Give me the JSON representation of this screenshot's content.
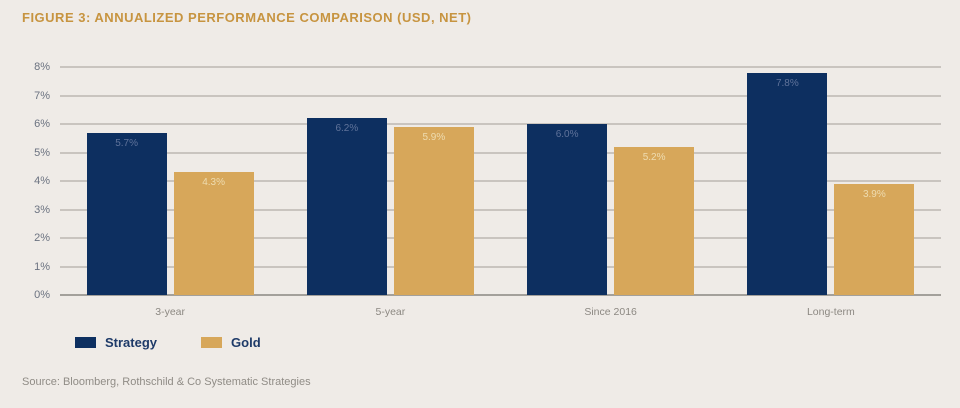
{
  "title": "FIGURE 3: ANNUALIZED PERFORMANCE COMPARISON (USD, NET)",
  "source": "Source: Bloomberg, Rothschild & Co Systematic Strategies",
  "colors": {
    "background": "#efebe7",
    "title": "#c79440",
    "navy": "#0d2f60",
    "gold": "#d7a75a",
    "gridline": "#c9c4bf",
    "baseline": "#a3a09b",
    "tick_label": "#6b7280",
    "category_label": "#8c8882",
    "legend_text": "#1e3a68",
    "value_label_on_navy": "#60739a",
    "value_label_on_gold": "#eedcb0"
  },
  "chart_data": {
    "type": "bar",
    "title": "FIGURE 3: ANNUALIZED PERFORMANCE COMPARISON (USD, NET)",
    "categories": [
      "3-year",
      "5-year",
      "Since 2016",
      "Long-term"
    ],
    "series": [
      {
        "name": "Strategy",
        "color_key": "navy",
        "values": [
          5.7,
          6.2,
          6.0,
          7.8
        ],
        "value_labels": [
          "5.7%",
          "6.2%",
          "6.0%",
          "7.8%"
        ],
        "value_label_color_key": "value_label_on_navy"
      },
      {
        "name": "Gold",
        "color_key": "gold",
        "values": [
          4.3,
          5.9,
          5.2,
          3.9
        ],
        "value_labels": [
          "4.3%",
          "5.9%",
          "5.2%",
          "3.9%"
        ],
        "value_label_color_key": "value_label_on_gold"
      }
    ],
    "xlabel": "",
    "ylabel": "",
    "ylim": [
      0,
      8
    ],
    "ytick_step": 1,
    "ytick_labels": [
      "0%",
      "1%",
      "2%",
      "3%",
      "4%",
      "5%",
      "6%",
      "7%",
      "8%"
    ],
    "grid": true,
    "legend_position": "bottom-left"
  }
}
